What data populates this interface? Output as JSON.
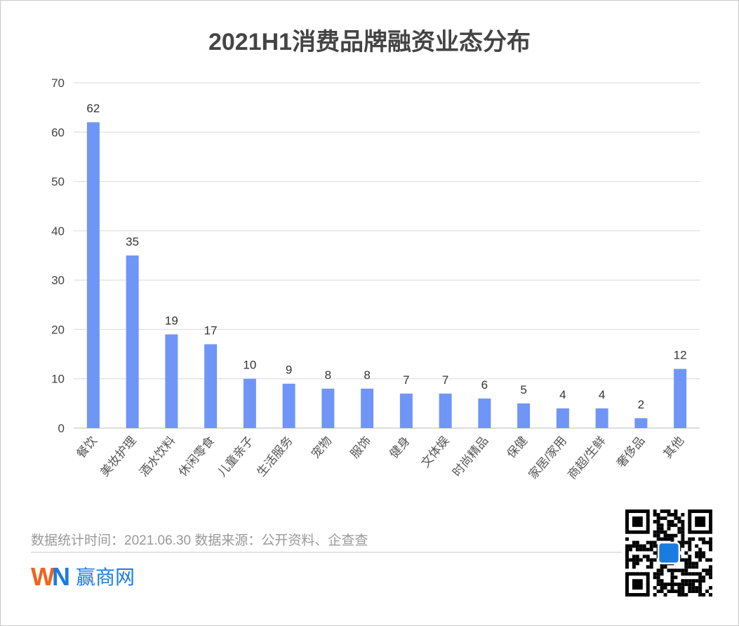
{
  "chart_data": {
    "type": "bar",
    "title": "2021H1消费品牌融资业态分布",
    "categories": [
      "餐饮",
      "美妆护理",
      "酒水饮料",
      "休闲零食",
      "儿童亲子",
      "生活服务",
      "宠物",
      "服饰",
      "健身",
      "文体娱",
      "时尚精品",
      "保健",
      "家居/家用",
      "商超/生鲜",
      "奢侈品",
      "其他"
    ],
    "values": [
      62,
      35,
      19,
      17,
      10,
      9,
      8,
      8,
      7,
      7,
      6,
      5,
      4,
      4,
      2,
      12
    ],
    "ylim": [
      0,
      70
    ],
    "yticks": [
      0,
      10,
      20,
      30,
      40,
      50,
      60,
      70
    ],
    "xlabel": "",
    "ylabel": "",
    "grid": true,
    "data_labels": true,
    "bar_color": "#6f95f7"
  },
  "footer": {
    "note": "数据统计时间：2021.06.30  数据来源：公开资料、企查查",
    "logo_text": "赢商网",
    "logo_mark": "WIN"
  },
  "colors": {
    "title": "#444444",
    "logo_orange": "#f2631c",
    "logo_blue": "#1a7be0"
  }
}
